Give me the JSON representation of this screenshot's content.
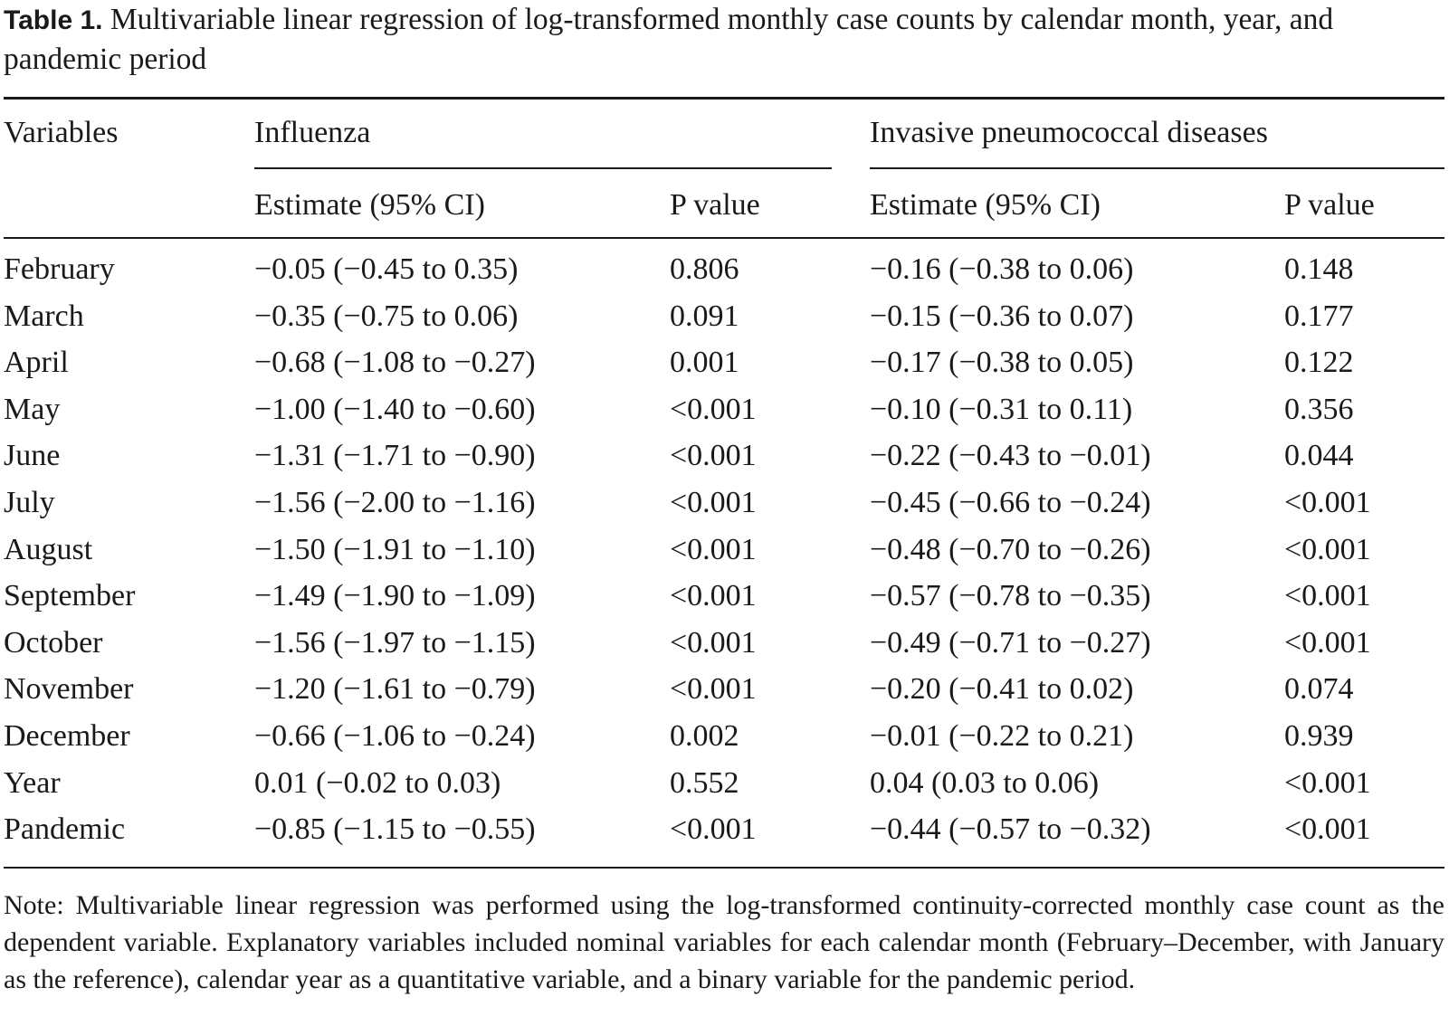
{
  "caption": {
    "label": "Table 1.",
    "text": "Multivariable linear regression of log-transformed monthly case counts by calendar month, year, and pandemic period"
  },
  "table": {
    "header": {
      "variables": "Variables",
      "influenza": "Influenza",
      "ipd": "Invasive pneumococcal diseases",
      "estimate": "Estimate (95% CI)",
      "pvalue": "P value"
    },
    "rows": [
      {
        "variable": "February",
        "inf_est": "−0.05 (−0.45 to 0.35)",
        "inf_p": "0.806",
        "ipd_est": "−0.16 (−0.38 to 0.06)",
        "ipd_p": "0.148"
      },
      {
        "variable": "March",
        "inf_est": "−0.35 (−0.75 to 0.06)",
        "inf_p": "0.091",
        "ipd_est": "−0.15 (−0.36 to 0.07)",
        "ipd_p": "0.177"
      },
      {
        "variable": "April",
        "inf_est": "−0.68 (−1.08 to −0.27)",
        "inf_p": "0.001",
        "ipd_est": "−0.17 (−0.38 to 0.05)",
        "ipd_p": "0.122"
      },
      {
        "variable": "May",
        "inf_est": "−1.00 (−1.40 to −0.60)",
        "inf_p": "<0.001",
        "ipd_est": "−0.10 (−0.31 to 0.11)",
        "ipd_p": "0.356"
      },
      {
        "variable": "June",
        "inf_est": "−1.31 (−1.71 to −0.90)",
        "inf_p": "<0.001",
        "ipd_est": "−0.22 (−0.43 to −0.01)",
        "ipd_p": "0.044"
      },
      {
        "variable": "July",
        "inf_est": "−1.56 (−2.00 to −1.16)",
        "inf_p": "<0.001",
        "ipd_est": "−0.45 (−0.66 to −0.24)",
        "ipd_p": "<0.001"
      },
      {
        "variable": "August",
        "inf_est": "−1.50 (−1.91 to −1.10)",
        "inf_p": "<0.001",
        "ipd_est": "−0.48 (−0.70 to −0.26)",
        "ipd_p": "<0.001"
      },
      {
        "variable": "September",
        "inf_est": "−1.49 (−1.90 to −1.09)",
        "inf_p": "<0.001",
        "ipd_est": "−0.57 (−0.78 to −0.35)",
        "ipd_p": "<0.001"
      },
      {
        "variable": "October",
        "inf_est": "−1.56 (−1.97 to −1.15)",
        "inf_p": "<0.001",
        "ipd_est": "−0.49 (−0.71 to −0.27)",
        "ipd_p": "<0.001"
      },
      {
        "variable": "November",
        "inf_est": "−1.20 (−1.61 to −0.79)",
        "inf_p": "<0.001",
        "ipd_est": "−0.20 (−0.41 to 0.02)",
        "ipd_p": "0.074"
      },
      {
        "variable": "December",
        "inf_est": "−0.66 (−1.06 to −0.24)",
        "inf_p": "0.002",
        "ipd_est": "−0.01 (−0.22 to 0.21)",
        "ipd_p": "0.939"
      },
      {
        "variable": "Year",
        "inf_est": "0.01 (−0.02 to 0.03)",
        "inf_p": "0.552",
        "ipd_est": "0.04 (0.03 to 0.06)",
        "ipd_p": "<0.001"
      },
      {
        "variable": "Pandemic",
        "inf_est": "−0.85 (−1.15 to −0.55)",
        "inf_p": "<0.001",
        "ipd_est": "−0.44 (−0.57 to −0.32)",
        "ipd_p": "<0.001"
      }
    ]
  },
  "note": "Note: Multivariable linear regression was performed using the log-transformed continuity-corrected monthly case count as the dependent variable. Explanatory variables included nominal variables for each calendar month (February–December, with January as the reference), calendar year as a quantitative variable, and a binary variable for the pandemic period."
}
